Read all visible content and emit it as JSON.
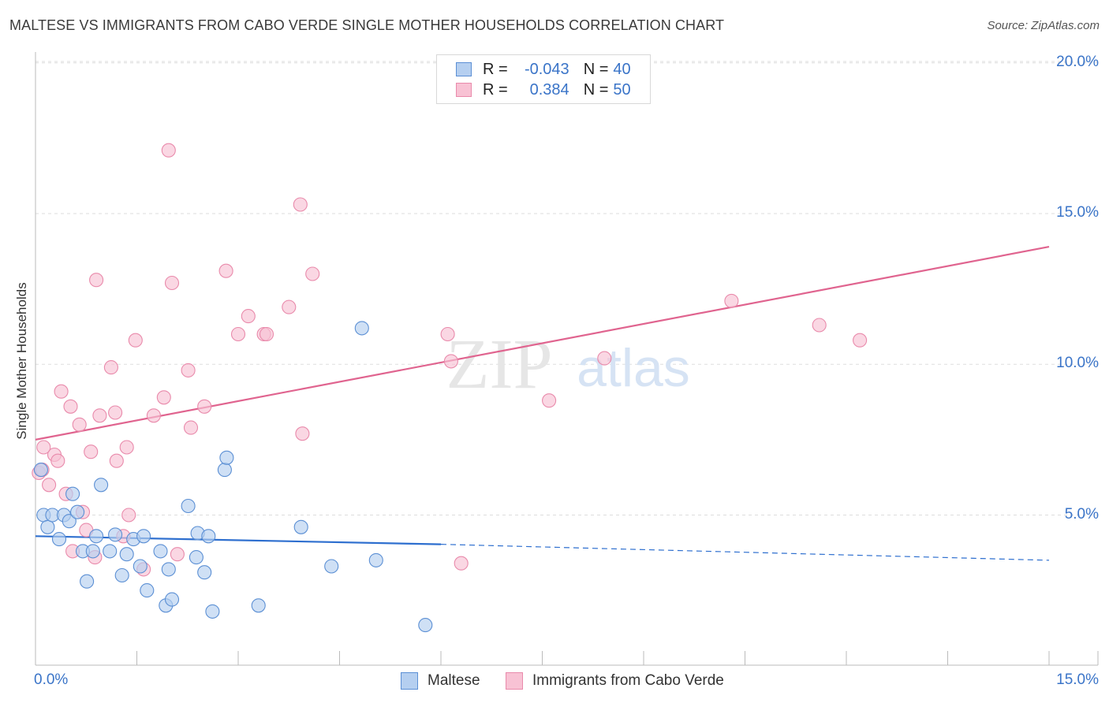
{
  "title": "MALTESE VS IMMIGRANTS FROM CABO VERDE SINGLE MOTHER HOUSEHOLDS CORRELATION CHART",
  "source": "Source: ZipAtlas.com",
  "watermark": {
    "zip": "ZIP",
    "atlas": "atlas"
  },
  "colors": {
    "blue_fill": "#b5cff0",
    "blue_stroke": "#5b8fd4",
    "blue_line": "#2e6fcf",
    "pink_fill": "#f8c2d4",
    "pink_stroke": "#e98aab",
    "pink_line": "#e0648f",
    "axis_text": "#3a74c8",
    "grid": "#dddddd"
  },
  "stats": [
    {
      "r_label": "R =",
      "r_value": "-0.043",
      "n_label": "N =",
      "n_value": "40"
    },
    {
      "r_label": "R =",
      "r_value": "0.384",
      "n_label": "N =",
      "n_value": "50"
    }
  ],
  "chart_data": {
    "type": "scatter",
    "title": "MALTESE VS IMMIGRANTS FROM CABO VERDE SINGLE MOTHER HOUSEHOLDS CORRELATION CHART",
    "xlabel": "",
    "ylabel": "Single Mother Households",
    "xlim": [
      0,
      15
    ],
    "ylim": [
      0,
      20.5
    ],
    "x_tick_labels": [
      "0.0%",
      "15.0%"
    ],
    "x_tick_values": [
      0,
      15
    ],
    "y_tick_labels": [
      "5.0%",
      "10.0%",
      "15.0%",
      "20.0%"
    ],
    "y_tick_values": [
      5,
      10,
      15,
      20
    ],
    "grid": true,
    "legend_position": "bottom",
    "series": [
      {
        "name": "Maltese",
        "color": "#b5cff0",
        "trend": {
          "x": [
            0,
            6.0
          ],
          "y": [
            4.3,
            4.03
          ],
          "dashed_to": [
            15,
            3.5
          ]
        },
        "points": [
          [
            0.08,
            6.5
          ],
          [
            0.12,
            5.0
          ],
          [
            0.18,
            4.6
          ],
          [
            0.25,
            5.0
          ],
          [
            0.35,
            4.2
          ],
          [
            0.42,
            5.0
          ],
          [
            0.5,
            4.8
          ],
          [
            0.55,
            5.7
          ],
          [
            0.62,
            5.1
          ],
          [
            0.7,
            3.8
          ],
          [
            0.76,
            2.8
          ],
          [
            0.85,
            3.8
          ],
          [
            0.9,
            4.3
          ],
          [
            0.97,
            6.0
          ],
          [
            1.1,
            3.8
          ],
          [
            1.18,
            4.35
          ],
          [
            1.28,
            3.0
          ],
          [
            1.35,
            3.7
          ],
          [
            1.45,
            4.2
          ],
          [
            1.55,
            3.3
          ],
          [
            1.6,
            4.3
          ],
          [
            1.65,
            2.5
          ],
          [
            1.85,
            3.8
          ],
          [
            1.93,
            2.0
          ],
          [
            1.97,
            3.2
          ],
          [
            2.02,
            2.2
          ],
          [
            2.26,
            5.3
          ],
          [
            2.38,
            3.6
          ],
          [
            2.4,
            4.4
          ],
          [
            2.5,
            3.1
          ],
          [
            2.56,
            4.3
          ],
          [
            2.62,
            1.8
          ],
          [
            2.8,
            6.5
          ],
          [
            2.83,
            6.9
          ],
          [
            3.3,
            2.0
          ],
          [
            3.93,
            4.6
          ],
          [
            4.38,
            3.3
          ],
          [
            4.83,
            11.2
          ],
          [
            5.04,
            3.5
          ],
          [
            5.77,
            1.35
          ]
        ]
      },
      {
        "name": "Immigrants from Cabo Verde",
        "color": "#f8c2d4",
        "trend": {
          "x": [
            0,
            15
          ],
          "y": [
            7.5,
            13.9
          ]
        },
        "points": [
          [
            0.05,
            6.4
          ],
          [
            0.1,
            6.5
          ],
          [
            0.2,
            6.0
          ],
          [
            0.28,
            7.0
          ],
          [
            0.33,
            6.8
          ],
          [
            0.38,
            9.1
          ],
          [
            0.45,
            5.7
          ],
          [
            0.52,
            8.6
          ],
          [
            0.55,
            3.8
          ],
          [
            0.65,
            8.0
          ],
          [
            0.7,
            5.1
          ],
          [
            0.75,
            4.5
          ],
          [
            0.82,
            7.1
          ],
          [
            0.88,
            3.6
          ],
          [
            0.9,
            12.8
          ],
          [
            0.95,
            8.3
          ],
          [
            1.12,
            9.9
          ],
          [
            1.18,
            8.4
          ],
          [
            1.2,
            6.8
          ],
          [
            1.3,
            4.3
          ],
          [
            1.35,
            7.25
          ],
          [
            1.38,
            5.0
          ],
          [
            1.48,
            10.8
          ],
          [
            1.6,
            3.2
          ],
          [
            1.75,
            8.3
          ],
          [
            1.9,
            8.9
          ],
          [
            1.97,
            17.1
          ],
          [
            2.02,
            12.7
          ],
          [
            2.1,
            3.7
          ],
          [
            2.26,
            9.8
          ],
          [
            2.3,
            7.9
          ],
          [
            2.5,
            8.6
          ],
          [
            2.82,
            13.1
          ],
          [
            3.0,
            11.0
          ],
          [
            3.15,
            11.6
          ],
          [
            3.38,
            11.0
          ],
          [
            3.42,
            11.0
          ],
          [
            3.75,
            11.9
          ],
          [
            3.92,
            15.3
          ],
          [
            3.95,
            7.7
          ],
          [
            4.1,
            13.0
          ],
          [
            6.1,
            11.0
          ],
          [
            6.15,
            10.1
          ],
          [
            6.3,
            3.4
          ],
          [
            7.6,
            8.8
          ],
          [
            8.42,
            10.2
          ],
          [
            10.3,
            12.1
          ],
          [
            11.6,
            11.3
          ],
          [
            12.2,
            10.8
          ],
          [
            0.12,
            7.25
          ]
        ]
      }
    ]
  },
  "legend": {
    "items": [
      {
        "label": "Maltese"
      },
      {
        "label": "Immigrants from Cabo Verde"
      }
    ]
  }
}
